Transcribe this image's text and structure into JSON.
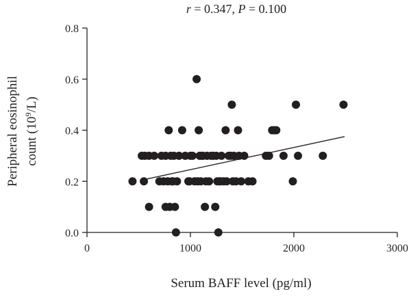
{
  "chart_data": {
    "type": "scatter",
    "title": "r = 0.347, P = 0.100",
    "xlabel": "Serum BAFF level (pg/ml)",
    "ylabel_line1": "Peripheral eosinophil",
    "ylabel_line2": "count (10",
    "ylabel_sup": "9",
    "ylabel_line2_end": "/L)",
    "xlim": [
      0,
      3000
    ],
    "ylim": [
      0,
      0.8
    ],
    "xticks": [
      0,
      1000,
      2000,
      3000
    ],
    "xtick_labels": [
      "0",
      "1000",
      "2000",
      "3000"
    ],
    "yticks": [
      0,
      0.2,
      0.4,
      0.6,
      0.8
    ],
    "ytick_labels": [
      "0.0",
      "0.2",
      "0.4",
      "0.6",
      "0.8"
    ],
    "grid": false,
    "point_color": "#231f20",
    "trendline": {
      "x": [
        530,
        2490
      ],
      "y": [
        0.205,
        0.375
      ]
    },
    "x": [
      440,
      530,
      550,
      560,
      600,
      600,
      650,
      700,
      720,
      740,
      760,
      760,
      780,
      790,
      800,
      810,
      820,
      830,
      840,
      850,
      860,
      870,
      890,
      920,
      950,
      980,
      990,
      1000,
      1020,
      1040,
      1060,
      1070,
      1080,
      1090,
      1100,
      1110,
      1120,
      1140,
      1150,
      1160,
      1180,
      1200,
      1220,
      1240,
      1250,
      1260,
      1270,
      1280,
      1290,
      1300,
      1320,
      1340,
      1350,
      1370,
      1390,
      1400,
      1410,
      1420,
      1440,
      1460,
      1470,
      1490,
      1520,
      1560,
      1600,
      1730,
      1760,
      1790,
      1810,
      1830,
      1900,
      1990,
      2020,
      2040,
      2280,
      2480
    ],
    "y": [
      0.2,
      0.3,
      0.2,
      0.3,
      0.1,
      0.3,
      0.3,
      0.2,
      0.3,
      0.2,
      0.1,
      0.3,
      0.2,
      0.4,
      0.1,
      0.3,
      0.2,
      0.2,
      0.3,
      0.1,
      0.0,
      0.2,
      0.3,
      0.4,
      0.3,
      0.2,
      0.2,
      0.3,
      0.3,
      0.2,
      0.6,
      0.2,
      0.4,
      0.3,
      0.2,
      0.3,
      0.3,
      0.1,
      0.2,
      0.3,
      0.2,
      0.3,
      0.3,
      0.1,
      0.3,
      0.2,
      0.0,
      0.2,
      0.2,
      0.3,
      0.2,
      0.4,
      0.2,
      0.3,
      0.3,
      0.5,
      0.2,
      0.3,
      0.2,
      0.4,
      0.3,
      0.2,
      0.3,
      0.2,
      0.2,
      0.3,
      0.3,
      0.4,
      0.4,
      0.4,
      0.3,
      0.2,
      0.5,
      0.3,
      0.3,
      0.5
    ]
  }
}
